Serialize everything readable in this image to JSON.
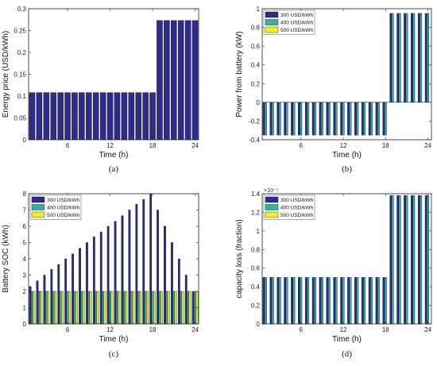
{
  "chart_data": [
    {
      "type": "bar",
      "caption": "(a)",
      "xlabel": "Time (h)",
      "ylabel": "Energy price (USD/kWh)",
      "ylim": [
        0,
        0.3
      ],
      "yticks": [
        "0",
        "0.05",
        "0.1",
        "0.15",
        "0.2",
        "0.25",
        "0.3"
      ],
      "xticks": [
        "6",
        "12",
        "18",
        "24"
      ],
      "categories": [
        1,
        2,
        3,
        4,
        5,
        6,
        7,
        8,
        9,
        10,
        11,
        12,
        13,
        14,
        15,
        16,
        17,
        18,
        19,
        20,
        21,
        22,
        23,
        24
      ],
      "series": [
        {
          "color": "#2e2b8c",
          "values": [
            0.108,
            0.108,
            0.108,
            0.108,
            0.108,
            0.108,
            0.108,
            0.108,
            0.108,
            0.108,
            0.108,
            0.108,
            0.108,
            0.108,
            0.108,
            0.108,
            0.108,
            0.108,
            0.273,
            0.273,
            0.273,
            0.273,
            0.273,
            0.273
          ]
        }
      ],
      "legend": false
    },
    {
      "type": "bar",
      "caption": "(b)",
      "xlabel": "Time (h)",
      "ylabel": "Power from battery (kW)",
      "ylim": [
        -0.4,
        1
      ],
      "yticks": [
        "-0.4",
        "-0.2",
        "0",
        "0.2",
        "0.4",
        "0.6",
        "0.8",
        "1"
      ],
      "xticks": [
        "6",
        "12",
        "18",
        "24"
      ],
      "categories": [
        1,
        2,
        3,
        4,
        5,
        6,
        7,
        8,
        9,
        10,
        11,
        12,
        13,
        14,
        15,
        16,
        17,
        18,
        19,
        20,
        21,
        22,
        23,
        24
      ],
      "series": [
        {
          "name": "300 USD/kWh",
          "color": "#2e2b8c",
          "values": [
            -0.35,
            -0.35,
            -0.35,
            -0.35,
            -0.35,
            -0.35,
            -0.35,
            -0.35,
            -0.35,
            -0.35,
            -0.35,
            -0.35,
            -0.35,
            -0.35,
            -0.35,
            -0.35,
            -0.35,
            -0.35,
            0.95,
            0.95,
            0.95,
            0.95,
            0.95,
            0.95
          ]
        },
        {
          "name": "400 USD/kWh",
          "color": "#2fb4a0",
          "values": [
            -0.35,
            -0.35,
            -0.35,
            -0.35,
            -0.35,
            -0.35,
            -0.35,
            -0.35,
            -0.35,
            -0.35,
            -0.35,
            -0.35,
            -0.35,
            -0.35,
            -0.35,
            -0.35,
            -0.35,
            -0.35,
            0.95,
            0.95,
            0.95,
            0.95,
            0.95,
            0.95
          ]
        },
        {
          "name": "500 USD/kWh",
          "color": "#f2ef22",
          "values": [
            0,
            0,
            0,
            0,
            0,
            0,
            0,
            0,
            0,
            0,
            0,
            0,
            0,
            0,
            0,
            0,
            0,
            0,
            0,
            0,
            0,
            0,
            0,
            0
          ]
        }
      ],
      "legend": true,
      "legend_position": "top-left"
    },
    {
      "type": "bar",
      "caption": "(c)",
      "xlabel": "Time (h)",
      "ylabel": "Battery SOC (kWh)",
      "ylim": [
        0,
        8
      ],
      "yticks": [
        "0",
        "1",
        "2",
        "3",
        "4",
        "5",
        "6",
        "7",
        "8"
      ],
      "xticks": [
        "6",
        "12",
        "18",
        "24"
      ],
      "categories": [
        1,
        2,
        3,
        4,
        5,
        6,
        7,
        8,
        9,
        10,
        11,
        12,
        13,
        14,
        15,
        16,
        17,
        18,
        19,
        20,
        21,
        22,
        23,
        24
      ],
      "series": [
        {
          "name": "300 USD/kWh",
          "color": "#2e2b8c",
          "values": [
            2.3,
            2.65,
            3.0,
            3.35,
            3.65,
            4.0,
            4.3,
            4.65,
            5.0,
            5.35,
            5.65,
            6.0,
            6.3,
            6.65,
            7.0,
            7.35,
            7.65,
            8.0,
            7.0,
            6.0,
            5.0,
            4.0,
            3.0,
            2.0
          ]
        },
        {
          "name": "400 USD/kWh",
          "color": "#2fb4a0",
          "values": [
            2,
            2,
            2,
            2,
            2,
            2,
            2,
            2,
            2,
            2,
            2,
            2,
            2,
            2,
            2,
            2,
            2,
            2,
            2,
            2,
            2,
            2,
            2,
            2
          ]
        },
        {
          "name": "500 USD/kWh",
          "color": "#f2ef22",
          "values": [
            2,
            2,
            2,
            2,
            2,
            2,
            2,
            2,
            2,
            2,
            2,
            2,
            2,
            2,
            2,
            2,
            2,
            2,
            2,
            2,
            2,
            2,
            2,
            2
          ]
        }
      ],
      "legend": true,
      "legend_position": "top-left"
    },
    {
      "type": "bar",
      "caption": "(d)",
      "xlabel": "Time (h)",
      "ylabel": "capacity loss (fraction)",
      "ylim": [
        0,
        1.4
      ],
      "yticks": [
        "0",
        "0.2",
        "0.4",
        "0.6",
        "0.8",
        "1",
        "1.2",
        "1.4"
      ],
      "yexponent": "×10⁻⁵",
      "xticks": [
        "6",
        "12",
        "18",
        "24"
      ],
      "categories": [
        1,
        2,
        3,
        4,
        5,
        6,
        7,
        8,
        9,
        10,
        11,
        12,
        13,
        14,
        15,
        16,
        17,
        18,
        19,
        20,
        21,
        22,
        23,
        24
      ],
      "series": [
        {
          "name": "300 USD/kWh",
          "color": "#2e2b8c",
          "values": [
            0.5,
            0.5,
            0.5,
            0.5,
            0.5,
            0.5,
            0.5,
            0.5,
            0.5,
            0.5,
            0.5,
            0.5,
            0.5,
            0.5,
            0.5,
            0.5,
            0.5,
            0.5,
            1.38,
            1.38,
            1.38,
            1.38,
            1.38,
            1.38
          ]
        },
        {
          "name": "400 USD/kWh",
          "color": "#2fb4a0",
          "values": [
            0.5,
            0.5,
            0.5,
            0.5,
            0.5,
            0.5,
            0.5,
            0.5,
            0.5,
            0.5,
            0.5,
            0.5,
            0.5,
            0.5,
            0.5,
            0.5,
            0.5,
            0.5,
            1.38,
            1.38,
            1.38,
            1.38,
            1.38,
            1.38
          ]
        },
        {
          "name": "500 USD/kWh",
          "color": "#f2ef22",
          "values": [
            0,
            0,
            0,
            0,
            0,
            0,
            0,
            0,
            0,
            0,
            0,
            0,
            0,
            0,
            0,
            0,
            0,
            0,
            0,
            0,
            0,
            0,
            0,
            0
          ]
        }
      ],
      "legend": true,
      "legend_position": "top-left"
    }
  ]
}
